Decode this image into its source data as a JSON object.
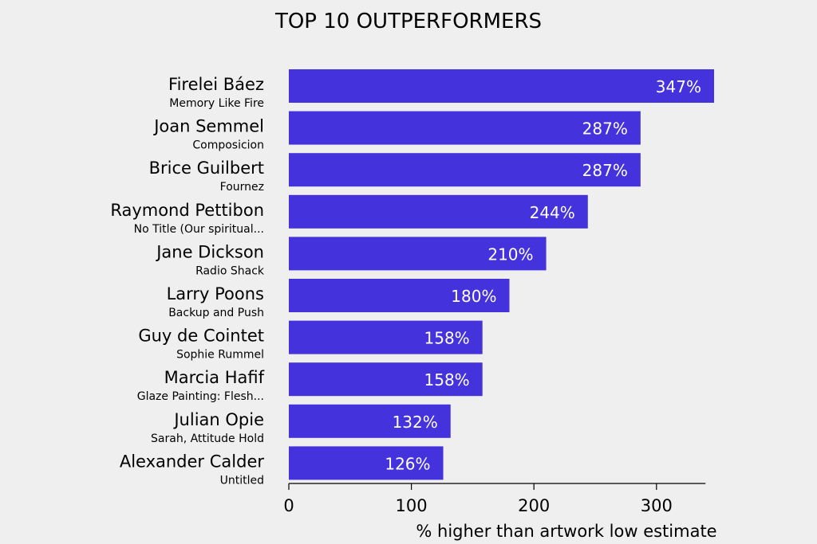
{
  "chart_data": {
    "type": "bar",
    "orientation": "horizontal",
    "title": "TOP 10 OUTPERFORMERS",
    "xlabel": "% higher than artwork low estimate",
    "ylabel": "",
    "xlim": [
      0,
      340
    ],
    "xticks": [
      0,
      100,
      200,
      300
    ],
    "grid": false,
    "bar_color": "#4433dd",
    "value_label_color": "#ffffff",
    "categories": [
      {
        "artist": "Firelei Báez",
        "work": "Memory Like Fire",
        "value": 347,
        "label": "347%"
      },
      {
        "artist": "Joan Semmel",
        "work": "Composicion",
        "value": 287,
        "label": "287%"
      },
      {
        "artist": "Brice Guilbert",
        "work": "Fournez",
        "value": 287,
        "label": "287%"
      },
      {
        "artist": "Raymond Pettibon",
        "work": "No Title (Our spiritual...",
        "value": 244,
        "label": "244%"
      },
      {
        "artist": "Jane Dickson",
        "work": "Radio Shack",
        "value": 210,
        "label": "210%"
      },
      {
        "artist": "Larry Poons",
        "work": "Backup and Push",
        "value": 180,
        "label": "180%"
      },
      {
        "artist": "Guy de Cointet",
        "work": "Sophie Rummel",
        "value": 158,
        "label": "158%"
      },
      {
        "artist": "Marcia Hafif",
        "work": "Glaze Painting: Flesh...",
        "value": 158,
        "label": "158%"
      },
      {
        "artist": "Julian Opie",
        "work": "Sarah, Attitude Hold",
        "value": 132,
        "label": "132%"
      },
      {
        "artist": "Alexander Calder",
        "work": "Untitled",
        "value": 126,
        "label": "126%"
      }
    ]
  }
}
